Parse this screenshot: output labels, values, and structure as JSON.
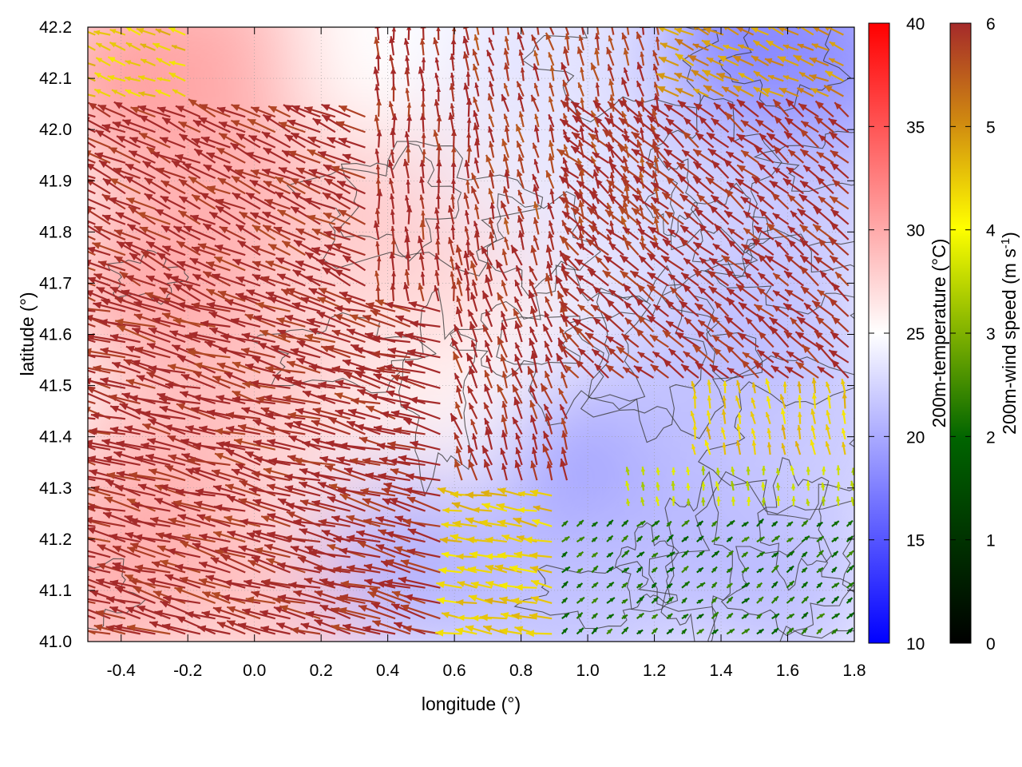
{
  "chart_data": {
    "type": "heatmap",
    "subtype": "vector-field-over-temperature-map",
    "xlabel": "longitude (°)",
    "ylabel": "latitude (°)",
    "xlim": [
      -0.5,
      1.8
    ],
    "ylim": [
      41.0,
      42.2
    ],
    "x_ticks": [
      "-0.4",
      "-0.2",
      "0.0",
      "0.2",
      "0.4",
      "0.6",
      "0.8",
      "1.0",
      "1.2",
      "1.4",
      "1.6",
      "1.8"
    ],
    "x_tick_values": [
      -0.4,
      -0.2,
      0.0,
      0.2,
      0.4,
      0.6,
      0.8,
      1.0,
      1.2,
      1.4,
      1.6,
      1.8
    ],
    "y_ticks": [
      "41.0",
      "41.1",
      "41.2",
      "41.3",
      "41.4",
      "41.5",
      "41.6",
      "41.7",
      "41.8",
      "41.9",
      "42.0",
      "42.1",
      "42.2"
    ],
    "y_tick_values": [
      41.0,
      41.1,
      41.2,
      41.3,
      41.4,
      41.5,
      41.6,
      41.7,
      41.8,
      41.9,
      42.0,
      42.1,
      42.2
    ],
    "grid": true,
    "temperature_colorbar": {
      "label": "200m-temperature (°C)",
      "range": [
        10,
        40
      ],
      "ticks": [
        "10",
        "15",
        "20",
        "25",
        "30",
        "35",
        "40"
      ],
      "tick_values": [
        10,
        15,
        20,
        25,
        30,
        35,
        40
      ],
      "colors": [
        "#0000ff",
        "#ffffff",
        "#ff0000"
      ]
    },
    "wind_colorbar": {
      "label_main": "200m-wind speed (m s",
      "label_sup": "-1",
      "label_end": ")",
      "range": [
        0,
        6
      ],
      "ticks": [
        "0",
        "1",
        "2",
        "3",
        "4",
        "5",
        "6"
      ],
      "tick_values": [
        0,
        1,
        2,
        3,
        4,
        5,
        6
      ],
      "colors": [
        "#000000",
        "#006400",
        "#ffff00",
        "#a52a2a"
      ]
    },
    "temperature_field": [
      {
        "lon": -0.45,
        "lat": 41.1,
        "t": 31
      },
      {
        "lon": -0.3,
        "lat": 41.3,
        "t": 31
      },
      {
        "lon": -0.3,
        "lat": 41.7,
        "t": 32
      },
      {
        "lon": -0.35,
        "lat": 42.1,
        "t": 33
      },
      {
        "lon": -0.1,
        "lat": 42.15,
        "t": 31
      },
      {
        "lon": 0.05,
        "lat": 41.9,
        "t": 31
      },
      {
        "lon": 0.1,
        "lat": 41.5,
        "t": 30
      },
      {
        "lon": 0.1,
        "lat": 41.1,
        "t": 30
      },
      {
        "lon": 0.3,
        "lat": 41.3,
        "t": 27
      },
      {
        "lon": 0.35,
        "lat": 41.7,
        "t": 28
      },
      {
        "lon": 0.4,
        "lat": 42.1,
        "t": 25
      },
      {
        "lon": 0.55,
        "lat": 41.85,
        "t": 29
      },
      {
        "lon": 0.55,
        "lat": 41.5,
        "t": 26
      },
      {
        "lon": 0.5,
        "lat": 41.15,
        "t": 19
      },
      {
        "lon": 0.75,
        "lat": 41.65,
        "t": 28
      },
      {
        "lon": 0.8,
        "lat": 41.95,
        "t": 24
      },
      {
        "lon": 0.85,
        "lat": 42.15,
        "t": 23
      },
      {
        "lon": 0.9,
        "lat": 41.5,
        "t": 25
      },
      {
        "lon": 0.85,
        "lat": 41.1,
        "t": 20
      },
      {
        "lon": 1.05,
        "lat": 41.35,
        "t": 17
      },
      {
        "lon": 1.1,
        "lat": 41.8,
        "t": 23
      },
      {
        "lon": 1.15,
        "lat": 42.1,
        "t": 23
      },
      {
        "lon": 1.3,
        "lat": 41.5,
        "t": 21
      },
      {
        "lon": 1.3,
        "lat": 41.2,
        "t": 20
      },
      {
        "lon": 1.4,
        "lat": 41.9,
        "t": 22
      },
      {
        "lon": 1.5,
        "lat": 42.18,
        "t": 15
      },
      {
        "lon": 1.55,
        "lat": 41.6,
        "t": 20
      },
      {
        "lon": 1.6,
        "lat": 41.1,
        "t": 20
      },
      {
        "lon": 1.75,
        "lat": 41.4,
        "t": 21
      },
      {
        "lon": 1.75,
        "lat": 41.9,
        "t": 21
      },
      {
        "lon": 1.75,
        "lat": 42.15,
        "t": 17
      },
      {
        "lon": 1.0,
        "lat": 41.05,
        "t": 21
      }
    ],
    "wind_regimes": [
      {
        "lon_range": [
          -0.5,
          0.6
        ],
        "lat_range": [
          41.0,
          41.65
        ],
        "direction_deg": 165,
        "speed": 6.0,
        "length_deg": 0.11
      },
      {
        "lon_range": [
          -0.5,
          0.35
        ],
        "lat_range": [
          41.65,
          42.05
        ],
        "direction_deg": 155,
        "speed": 6.0,
        "length_deg": 0.09
      },
      {
        "lon_range": [
          -0.5,
          -0.2
        ],
        "lat_range": [
          42.05,
          42.2
        ],
        "direction_deg": 160,
        "speed": 4.5,
        "length_deg": 0.05
      },
      {
        "lon_range": [
          0.35,
          0.65
        ],
        "lat_range": [
          41.65,
          42.2
        ],
        "direction_deg": 95,
        "speed": 6.0,
        "length_deg": 0.05
      },
      {
        "lon_range": [
          0.6,
          0.95
        ],
        "lat_range": [
          41.3,
          41.75
        ],
        "direction_deg": 110,
        "speed": 6.0,
        "length_deg": 0.06
      },
      {
        "lon_range": [
          0.65,
          1.25
        ],
        "lat_range": [
          41.75,
          42.2
        ],
        "direction_deg": 105,
        "speed": 5.8,
        "length_deg": 0.05
      },
      {
        "lon_range": [
          0.95,
          1.8
        ],
        "lat_range": [
          41.5,
          42.05
        ],
        "direction_deg": 140,
        "speed": 6.0,
        "length_deg": 0.07
      },
      {
        "lon_range": [
          1.25,
          1.8
        ],
        "lat_range": [
          42.05,
          42.2
        ],
        "direction_deg": 155,
        "speed": 5.0,
        "length_deg": 0.06
      },
      {
        "lon_range": [
          1.3,
          1.8
        ],
        "lat_range": [
          41.35,
          41.5
        ],
        "direction_deg": 100,
        "speed": 4.5,
        "length_deg": 0.04
      },
      {
        "lon_range": [
          1.1,
          1.8
        ],
        "lat_range": [
          41.25,
          41.35
        ],
        "direction_deg": 95,
        "speed": 3.5,
        "length_deg": 0.025
      },
      {
        "lon_range": [
          0.9,
          1.8
        ],
        "lat_range": [
          41.0,
          41.25
        ],
        "direction_deg": 40,
        "speed": 2.2,
        "length_deg": 0.025
      },
      {
        "lon_range": [
          0.6,
          0.9
        ],
        "lat_range": [
          41.0,
          41.3
        ],
        "direction_deg": 170,
        "speed": 4.5,
        "length_deg": 0.07
      }
    ]
  }
}
